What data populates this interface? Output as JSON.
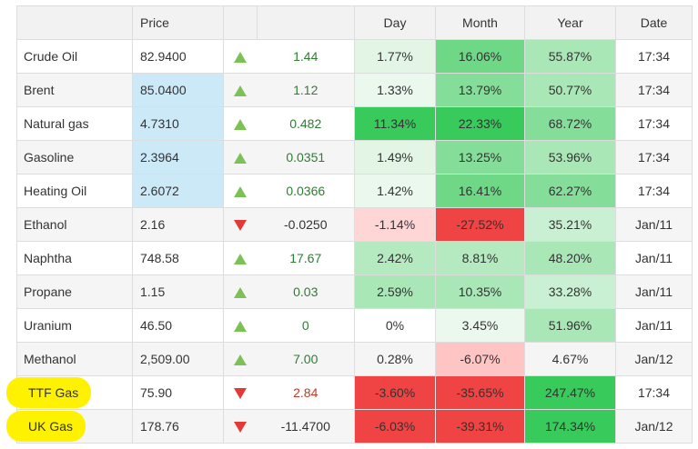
{
  "headers": {
    "name": "",
    "price": "Price",
    "arrow": "",
    "change": "",
    "day": "Day",
    "month": "Month",
    "year": "Year",
    "date": "Date"
  },
  "colors": {
    "up_arrow": "#7cc156",
    "down_arrow": "#e53935",
    "highlight": "#fff200",
    "price_highlight": "#cce9f7"
  },
  "rows": [
    {
      "name": "Crude Oil",
      "price": "82.9400",
      "dir": "up",
      "change": "1.44",
      "day": "1.77%",
      "month": "16.06%",
      "year": "55.87%",
      "date": "17:34",
      "day_bg": "#e3f6e6",
      "month_bg": "#6ed886",
      "year_bg": "#a9e7b7",
      "price_bg": "",
      "chg_style": "",
      "highlight": false
    },
    {
      "name": "Brent",
      "price": "85.0400",
      "dir": "up",
      "change": "1.12",
      "day": "1.33%",
      "month": "13.79%",
      "year": "50.77%",
      "date": "17:34",
      "day_bg": "#eaf8ed",
      "month_bg": "#84de99",
      "year_bg": "#a9e7b7",
      "price_bg": "#cce9f7",
      "chg_style": "",
      "highlight": false
    },
    {
      "name": "Natural gas",
      "price": "4.7310",
      "dir": "up",
      "change": "0.482",
      "day": "11.34%",
      "month": "22.33%",
      "year": "68.72%",
      "date": "17:34",
      "day_bg": "#38ca5b",
      "month_bg": "#38ca5b",
      "year_bg": "#84de99",
      "price_bg": "#cce9f7",
      "chg_style": "",
      "highlight": false
    },
    {
      "name": "Gasoline",
      "price": "2.3964",
      "dir": "up",
      "change": "0.0351",
      "day": "1.49%",
      "month": "13.25%",
      "year": "53.96%",
      "date": "17:34",
      "day_bg": "#e3f6e6",
      "month_bg": "#84de99",
      "year_bg": "#a9e7b7",
      "price_bg": "#cce9f7",
      "chg_style": "",
      "highlight": false
    },
    {
      "name": "Heating Oil",
      "price": "2.6072",
      "dir": "up",
      "change": "0.0366",
      "day": "1.42%",
      "month": "16.41%",
      "year": "62.27%",
      "date": "17:34",
      "day_bg": "#eaf8ed",
      "month_bg": "#6ed886",
      "year_bg": "#84de99",
      "price_bg": "#cce9f7",
      "chg_style": "",
      "highlight": false
    },
    {
      "name": "Ethanol",
      "price": "2.16",
      "dir": "down",
      "change": "-0.0250",
      "day": "-1.14%",
      "month": "-27.52%",
      "year": "35.21%",
      "date": "Jan/11",
      "day_bg": "#ffd6d6",
      "month_bg": "#f04343",
      "year_bg": "#c9f0d2",
      "price_bg": "",
      "chg_style": "neg",
      "highlight": false
    },
    {
      "name": "Naphtha",
      "price": "748.58",
      "dir": "up",
      "change": "17.67",
      "day": "2.42%",
      "month": "8.81%",
      "year": "48.20%",
      "date": "Jan/11",
      "day_bg": "#b5eac1",
      "month_bg": "#b5eac1",
      "year_bg": "#a9e7b7",
      "price_bg": "",
      "chg_style": "",
      "highlight": false
    },
    {
      "name": "Propane",
      "price": "1.15",
      "dir": "up",
      "change": "0.03",
      "day": "2.59%",
      "month": "10.35%",
      "year": "33.28%",
      "date": "Jan/11",
      "day_bg": "#a9e7b7",
      "month_bg": "#a9e7b7",
      "year_bg": "#c9f0d2",
      "price_bg": "",
      "chg_style": "",
      "highlight": false
    },
    {
      "name": "Uranium",
      "price": "46.50",
      "dir": "up",
      "change": "0",
      "day": "0%",
      "month": "3.45%",
      "year": "51.96%",
      "date": "Jan/11",
      "day_bg": "",
      "month_bg": "#eaf8ed",
      "year_bg": "#a9e7b7",
      "price_bg": "",
      "chg_style": "",
      "highlight": false
    },
    {
      "name": "Methanol",
      "price": "2,509.00",
      "dir": "up",
      "change": "7.00",
      "day": "0.28%",
      "month": "-6.07%",
      "year": "4.67%",
      "date": "Jan/12",
      "day_bg": "",
      "month_bg": "#ffc4c4",
      "year_bg": "",
      "price_bg": "",
      "chg_style": "",
      "highlight": false
    },
    {
      "name": "TTF Gas",
      "price": "75.90",
      "dir": "down",
      "change": "2.84",
      "day": "-3.60%",
      "month": "-35.65%",
      "year": "247.47%",
      "date": "17:34",
      "day_bg": "#f04343",
      "month_bg": "#f04343",
      "year_bg": "#38ca5b",
      "price_bg": "",
      "chg_style": "red",
      "highlight": true
    },
    {
      "name": "UK Gas",
      "price": "178.76",
      "dir": "down",
      "change": "-11.4700",
      "day": "-6.03%",
      "month": "-39.31%",
      "year": "174.34%",
      "date": "Jan/12",
      "day_bg": "#f04343",
      "month_bg": "#f04343",
      "year_bg": "#38ca5b",
      "price_bg": "",
      "chg_style": "neg",
      "highlight": true
    }
  ]
}
